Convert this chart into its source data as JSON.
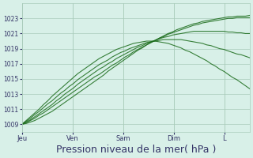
{
  "background_color": "#d8f0e8",
  "plot_bg_color": "#d8f0e8",
  "grid_color": "#aaccbb",
  "line_color": "#1a6b1a",
  "ylim": [
    1008,
    1025
  ],
  "yticks": [
    1009,
    1011,
    1013,
    1015,
    1017,
    1019,
    1021,
    1023
  ],
  "xlabel": "Pression niveau de la mer( hPa )",
  "xlabel_fontsize": 9,
  "xtick_labels": [
    "Jeu",
    "Ven",
    "Sam",
    "Dim",
    "L"
  ],
  "xtick_positions": [
    0,
    24,
    48,
    72,
    96
  ],
  "total_hours": 108,
  "series": [
    [
      1009.0,
      1009.2,
      1009.5,
      1009.8,
      1010.2,
      1010.5,
      1010.9,
      1011.3,
      1011.7,
      1012.1,
      1012.5,
      1012.9,
      1013.3,
      1013.7,
      1014.1,
      1014.5,
      1014.9,
      1015.3,
      1015.6,
      1016.0,
      1016.4,
      1016.8,
      1017.1,
      1017.5,
      1017.9,
      1018.2,
      1018.6,
      1018.9,
      1019.2,
      1019.5,
      1019.8,
      1020.1,
      1020.4,
      1020.6,
      1020.9,
      1021.1,
      1021.3,
      1021.5,
      1021.7,
      1021.9,
      1022.1,
      1022.2,
      1022.4,
      1022.5,
      1022.6,
      1022.7,
      1022.8,
      1022.9,
      1023.0,
      1023.0,
      1023.1,
      1023.1,
      1023.1,
      1023.1
    ],
    [
      1009.0,
      1009.3,
      1009.6,
      1010.0,
      1010.4,
      1010.8,
      1011.2,
      1011.6,
      1012.1,
      1012.5,
      1013.0,
      1013.4,
      1013.8,
      1014.3,
      1014.7,
      1015.1,
      1015.5,
      1015.9,
      1016.3,
      1016.6,
      1017.0,
      1017.3,
      1017.7,
      1018.0,
      1018.3,
      1018.6,
      1018.9,
      1019.2,
      1019.4,
      1019.7,
      1019.9,
      1020.1,
      1020.3,
      1020.5,
      1020.6,
      1020.8,
      1020.9,
      1021.0,
      1021.1,
      1021.2,
      1021.3,
      1021.3,
      1021.3,
      1021.3,
      1021.3,
      1021.3,
      1021.3,
      1021.3,
      1021.2,
      1021.2,
      1021.1,
      1021.1,
      1021.0,
      1021.0
    ],
    [
      1009.0,
      1009.4,
      1009.8,
      1010.3,
      1010.7,
      1011.2,
      1011.7,
      1012.1,
      1012.6,
      1013.1,
      1013.5,
      1014.0,
      1014.4,
      1014.9,
      1015.3,
      1015.7,
      1016.1,
      1016.5,
      1016.9,
      1017.2,
      1017.5,
      1017.9,
      1018.2,
      1018.5,
      1018.7,
      1019.0,
      1019.2,
      1019.4,
      1019.6,
      1019.8,
      1019.9,
      1020.0,
      1020.1,
      1020.2,
      1020.2,
      1020.2,
      1020.2,
      1020.2,
      1020.1,
      1020.0,
      1019.9,
      1019.8,
      1019.7,
      1019.5,
      1019.4,
      1019.2,
      1019.0,
      1018.9,
      1018.7,
      1018.5,
      1018.3,
      1018.2,
      1018.0,
      1017.8
    ],
    [
      1009.0,
      1009.5,
      1010.0,
      1010.5,
      1011.0,
      1011.6,
      1012.1,
      1012.7,
      1013.2,
      1013.7,
      1014.2,
      1014.7,
      1015.2,
      1015.7,
      1016.1,
      1016.5,
      1016.9,
      1017.3,
      1017.7,
      1018.0,
      1018.3,
      1018.6,
      1018.9,
      1019.1,
      1019.3,
      1019.5,
      1019.7,
      1019.8,
      1019.9,
      1020.0,
      1020.0,
      1020.0,
      1019.9,
      1019.8,
      1019.7,
      1019.5,
      1019.3,
      1019.1,
      1018.8,
      1018.6,
      1018.3,
      1018.0,
      1017.7,
      1017.4,
      1017.0,
      1016.7,
      1016.3,
      1016.0,
      1015.6,
      1015.2,
      1014.9,
      1014.5,
      1014.1,
      1013.7
    ],
    [
      1009.0,
      1009.1,
      1009.3,
      1009.5,
      1009.8,
      1010.1,
      1010.4,
      1010.7,
      1011.1,
      1011.5,
      1011.9,
      1012.3,
      1012.7,
      1013.1,
      1013.5,
      1013.9,
      1014.3,
      1014.7,
      1015.1,
      1015.5,
      1016.0,
      1016.4,
      1016.8,
      1017.2,
      1017.6,
      1018.0,
      1018.4,
      1018.8,
      1019.1,
      1019.5,
      1019.8,
      1020.1,
      1020.4,
      1020.7,
      1021.0,
      1021.2,
      1021.5,
      1021.7,
      1021.9,
      1022.1,
      1022.3,
      1022.4,
      1022.6,
      1022.7,
      1022.8,
      1022.9,
      1023.0,
      1023.1,
      1023.2,
      1023.2,
      1023.3,
      1023.3,
      1023.3,
      1023.4
    ]
  ]
}
